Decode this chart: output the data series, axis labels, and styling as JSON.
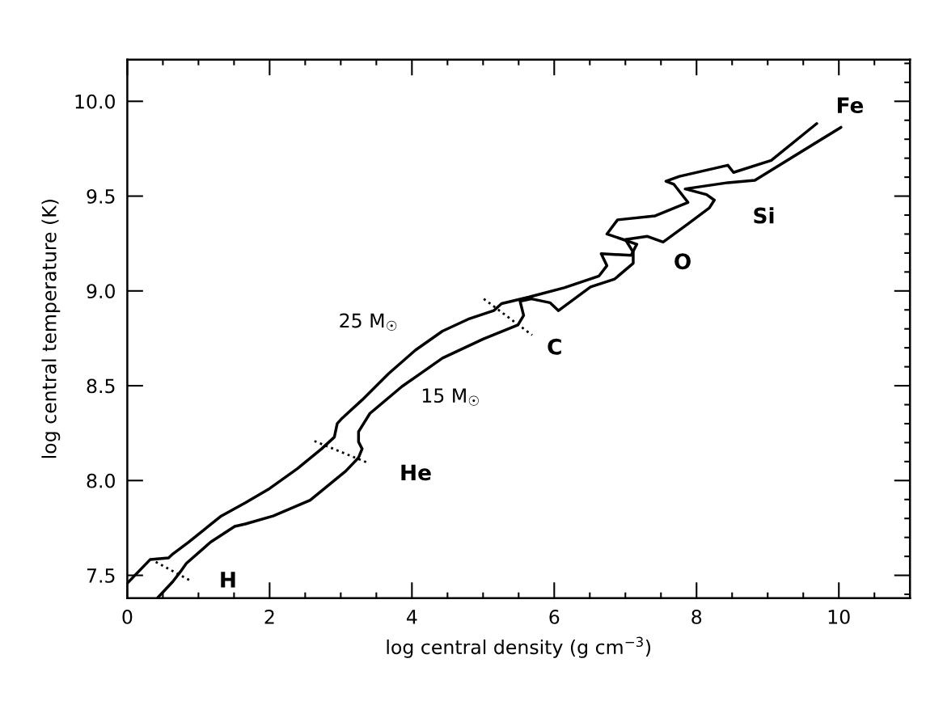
{
  "chart_data": {
    "type": "line",
    "xlabel": "log central density (g cm$^{−3}$)",
    "ylabel": "log central temperature (K)",
    "xlim": [
      0,
      11
    ],
    "ylim": [
      7.38,
      10.22
    ],
    "xticks": [
      0,
      2,
      4,
      6,
      8,
      10
    ],
    "yticks": [
      7.5,
      {
        "value": 8,
        "label": "8.0"
      },
      8.5,
      {
        "value": 9,
        "label": "9.0"
      },
      9.5,
      {
        "value": 10,
        "label": "10.0"
      }
    ],
    "marker": "none",
    "series": [
      {
        "color": "#000000",
        "line_style": "solid",
        "x": [
          0.0,
          0.32,
          0.58,
          0.64,
          0.86,
          1.32,
          1.66,
          2.0,
          2.39,
          2.73,
          2.91,
          2.95,
          3.02,
          3.3,
          3.67,
          4.05,
          4.43,
          4.81,
          5.15,
          5.26,
          5.64,
          6.14,
          6.63,
          6.74,
          6.66,
          7.08,
          7.16,
          6.97,
          6.74,
          6.89,
          7.42,
          7.88,
          7.68,
          7.57,
          7.76,
          8.44,
          8.52,
          9.05,
          9.69
        ],
        "values": [
          7.458,
          7.583,
          7.592,
          7.613,
          7.675,
          7.813,
          7.883,
          7.958,
          8.063,
          8.167,
          8.229,
          8.3,
          8.329,
          8.425,
          8.563,
          8.688,
          8.788,
          8.854,
          8.896,
          8.933,
          8.967,
          9.017,
          9.079,
          9.133,
          9.196,
          9.188,
          9.246,
          9.271,
          9.3,
          9.375,
          9.396,
          9.467,
          9.563,
          9.579,
          9.604,
          9.663,
          9.625,
          9.688,
          9.883
        ]
      },
      {
        "color": "#000000",
        "line_style": "solid",
        "x": [
          0.43,
          0.64,
          0.75,
          0.83,
          1.17,
          1.51,
          1.66,
          2.05,
          2.57,
          3.07,
          3.25,
          3.3,
          3.25,
          3.25,
          3.41,
          3.86,
          4.43,
          5.0,
          5.49,
          5.57,
          5.52,
          5.68,
          5.94,
          6.06,
          6.51,
          6.85,
          7.11,
          7.11,
          7.0,
          7.31,
          7.53,
          7.88,
          8.18,
          8.25,
          8.14,
          7.84,
          8.44,
          8.82,
          10.03
        ],
        "values": [
          7.383,
          7.467,
          7.521,
          7.563,
          7.675,
          7.758,
          7.771,
          7.813,
          7.896,
          8.05,
          8.121,
          8.167,
          8.204,
          8.258,
          8.354,
          8.496,
          8.646,
          8.746,
          8.821,
          8.871,
          8.946,
          8.958,
          8.938,
          8.896,
          9.021,
          9.063,
          9.146,
          9.204,
          9.271,
          9.288,
          9.258,
          9.354,
          9.438,
          9.479,
          9.508,
          9.538,
          9.571,
          9.583,
          9.863
        ]
      },
      {
        "color": "#000000",
        "line_style": "dotted",
        "x": [
          0.4,
          0.91
        ],
        "values": [
          7.571,
          7.467
        ]
      },
      {
        "color": "#000000",
        "line_style": "dotted",
        "x": [
          2.63,
          3.39
        ],
        "values": [
          8.208,
          8.092
        ]
      },
      {
        "color": "#000000",
        "line_style": "dotted",
        "x": [
          5.01,
          5.69
        ],
        "values": [
          8.958,
          8.767
        ]
      }
    ],
    "annotations": [
      {
        "text": "H",
        "x": 0.91,
        "y": 7.467
      },
      {
        "text": "He",
        "x": 3.39,
        "y": 8.092
      },
      {
        "text": "C",
        "x": 5.69,
        "y": 8.767
      },
      {
        "text": "O",
        "x": 7.11,
        "y": 9.146
      },
      {
        "text": "Si",
        "x": 8.82,
        "y": 9.583
      },
      {
        "text": "Fe",
        "x": 10.03,
        "y": 9.863
      },
      "25 M$_{☉}$",
      "15 M$_{☉}$"
    ]
  }
}
